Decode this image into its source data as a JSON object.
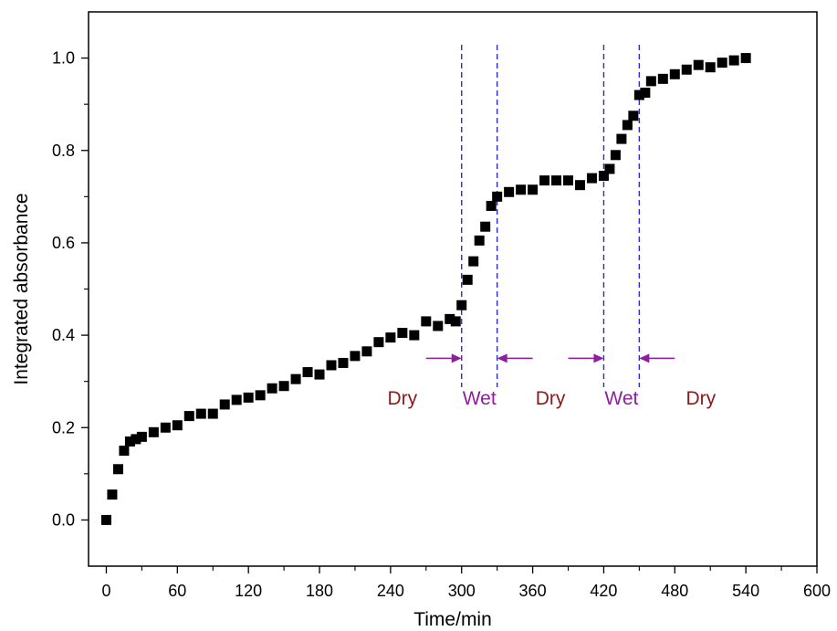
{
  "chart_data": {
    "type": "scatter",
    "xlabel": "Time/min",
    "ylabel": "Integrated absorbance",
    "xlim": [
      -15,
      600
    ],
    "ylim": [
      -0.1,
      1.1
    ],
    "xticks": [
      0,
      60,
      120,
      180,
      240,
      300,
      360,
      420,
      480,
      540,
      600
    ],
    "yticks": [
      0.0,
      0.2,
      0.4,
      0.6,
      0.8,
      1.0
    ],
    "xtick_labels": [
      "0",
      "60",
      "120",
      "180",
      "240",
      "300",
      "360",
      "420",
      "480",
      "540",
      "600"
    ],
    "ytick_labels": [
      "0.0",
      "0.2",
      "0.4",
      "0.6",
      "0.8",
      "1.0"
    ],
    "grid": false,
    "marker": "square",
    "marker_color": "#000000",
    "series": [
      {
        "x": [
          0,
          5,
          10,
          15,
          20,
          25,
          30,
          40,
          50,
          60,
          70,
          80,
          90,
          100,
          110,
          120,
          130,
          140,
          150,
          160,
          170,
          180,
          190,
          200,
          210,
          220,
          230,
          240,
          250,
          260,
          270,
          280,
          290,
          295,
          300,
          305,
          310,
          315,
          320,
          325,
          330,
          340,
          350,
          360,
          370,
          380,
          390,
          400,
          410,
          420,
          425,
          430,
          435,
          440,
          445,
          450,
          455,
          460,
          470,
          480,
          490,
          500,
          510,
          520,
          530,
          540
        ],
        "y": [
          0.0,
          0.055,
          0.11,
          0.15,
          0.17,
          0.175,
          0.18,
          0.19,
          0.2,
          0.205,
          0.225,
          0.23,
          0.23,
          0.25,
          0.26,
          0.265,
          0.27,
          0.285,
          0.29,
          0.305,
          0.32,
          0.315,
          0.335,
          0.34,
          0.355,
          0.365,
          0.385,
          0.395,
          0.405,
          0.4,
          0.43,
          0.42,
          0.435,
          0.43,
          0.465,
          0.52,
          0.56,
          0.605,
          0.635,
          0.68,
          0.7,
          0.71,
          0.715,
          0.715,
          0.735,
          0.735,
          0.735,
          0.725,
          0.74,
          0.745,
          0.76,
          0.79,
          0.825,
          0.855,
          0.875,
          0.92,
          0.925,
          0.95,
          0.955,
          0.965,
          0.975,
          0.985,
          0.98,
          0.99,
          0.995,
          1.0
        ]
      }
    ],
    "boundaries": {
      "x": [
        300,
        330,
        420,
        450
      ],
      "style": "dashed",
      "color": "#2b2bd6"
    },
    "annotations": {
      "regions": [
        {
          "label": "Dry",
          "x": 250,
          "y": 0.25,
          "color": "#8b1a1a"
        },
        {
          "label": "Wet",
          "x": 315,
          "y": 0.25,
          "color": "#8e1e9e"
        },
        {
          "label": "Dry",
          "x": 375,
          "y": 0.25,
          "color": "#8b1a1a"
        },
        {
          "label": "Wet",
          "x": 435,
          "y": 0.25,
          "color": "#8e1e9e"
        },
        {
          "label": "Dry",
          "x": 502,
          "y": 0.25,
          "color": "#8b1a1a"
        }
      ],
      "arrows": [
        {
          "from": 270,
          "to": 300,
          "y": 0.35
        },
        {
          "from": 360,
          "to": 330,
          "y": 0.35
        },
        {
          "from": 390,
          "to": 420,
          "y": 0.35
        },
        {
          "from": 480,
          "to": 450,
          "y": 0.35
        }
      ],
      "arrow_color": "#8e1e9e"
    }
  }
}
